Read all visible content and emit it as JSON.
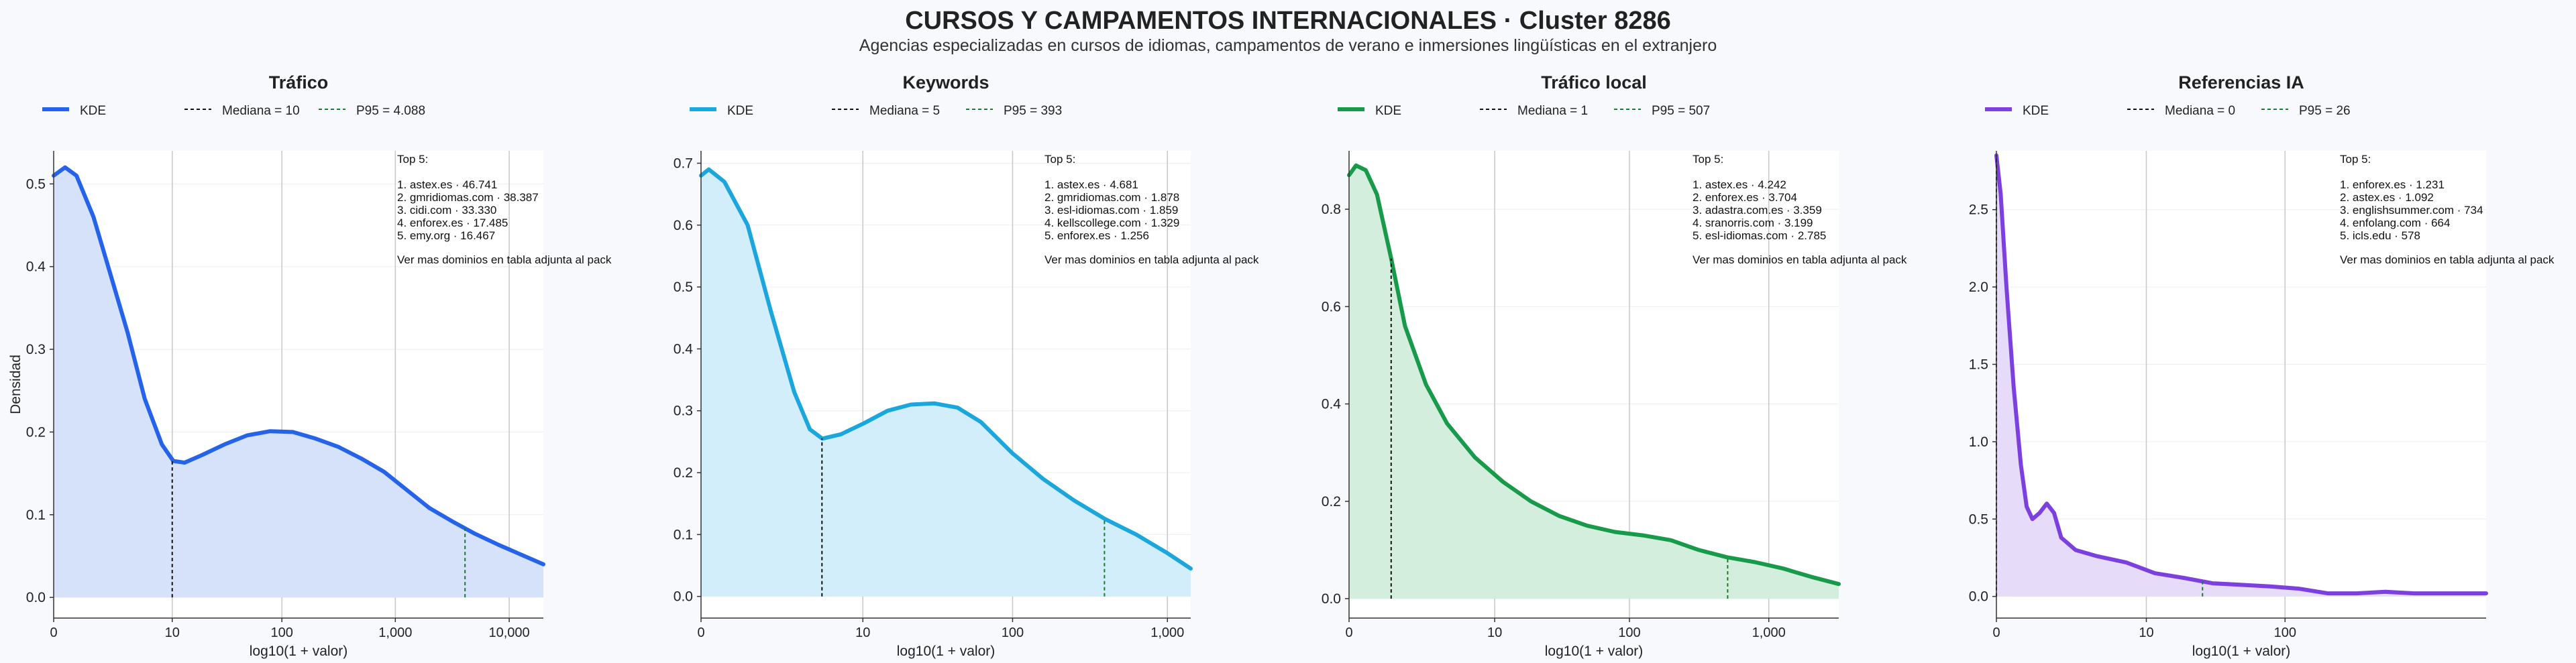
{
  "header": {
    "title": "CURSOS Y CAMPAMENTOS INTERNACIONALES · Cluster 8286",
    "subtitle": "Agencias especializadas en cursos de idiomas, campamentos de verano e inmersiones lingüísticas en el extranjero"
  },
  "shared": {
    "xlabel": "log10(1 + valor)",
    "ylabel": "Densidad",
    "legend_kde": "KDE",
    "top_heading": "Top 5:",
    "top_footer": "Ver mas dominios en tabla adjunta al pack"
  },
  "chart_data": [
    {
      "type": "area",
      "title": "Tráfico",
      "color": "#2563eb",
      "fill": "#d6e1fa",
      "xlim": [
        0,
        4.3
      ],
      "ylim": [
        -0.025,
        0.54
      ],
      "xticks": [
        {
          "v": 0,
          "label": "0"
        },
        {
          "v": 1.041,
          "label": "10"
        },
        {
          "v": 2.004,
          "label": "100"
        },
        {
          "v": 3.0,
          "label": "1,000"
        },
        {
          "v": 4.0,
          "label": "10,000"
        }
      ],
      "yticks": [
        0.0,
        0.1,
        0.2,
        0.3,
        0.4,
        0.5
      ],
      "ytick_decimals": 1,
      "curve": [
        [
          0,
          0.51
        ],
        [
          0.1,
          0.52
        ],
        [
          0.2,
          0.51
        ],
        [
          0.35,
          0.46
        ],
        [
          0.5,
          0.39
        ],
        [
          0.65,
          0.32
        ],
        [
          0.8,
          0.24
        ],
        [
          0.95,
          0.185
        ],
        [
          1.05,
          0.165
        ],
        [
          1.15,
          0.163
        ],
        [
          1.3,
          0.172
        ],
        [
          1.5,
          0.185
        ],
        [
          1.7,
          0.196
        ],
        [
          1.9,
          0.201
        ],
        [
          2.1,
          0.2
        ],
        [
          2.3,
          0.192
        ],
        [
          2.5,
          0.182
        ],
        [
          2.7,
          0.168
        ],
        [
          2.9,
          0.152
        ],
        [
          3.1,
          0.13
        ],
        [
          3.3,
          0.108
        ],
        [
          3.5,
          0.092
        ],
        [
          3.7,
          0.077
        ],
        [
          3.9,
          0.064
        ],
        [
          4.1,
          0.052
        ],
        [
          4.3,
          0.04
        ]
      ],
      "median": {
        "label": "Mediana = 10",
        "x": 1.041
      },
      "p95": {
        "label": "P95 = 4.088",
        "x": 3.612
      },
      "top5": [
        "1. astex.es · 46.741",
        "2. gmridiomas.com · 38.387",
        "3. cidi.com · 33.330",
        "4. enforex.es · 17.485",
        "5. emy.org · 16.467"
      ]
    },
    {
      "type": "area",
      "title": "Keywords",
      "color": "#1ba6dd",
      "fill": "#d2eefa",
      "xlim": [
        0,
        3.15
      ],
      "ylim": [
        -0.035,
        0.72
      ],
      "xticks": [
        {
          "v": 0,
          "label": "0"
        },
        {
          "v": 1.041,
          "label": "10"
        },
        {
          "v": 2.004,
          "label": "100"
        },
        {
          "v": 3.0,
          "label": "1,000"
        }
      ],
      "yticks": [
        0.0,
        0.1,
        0.2,
        0.3,
        0.4,
        0.5,
        0.6,
        0.7
      ],
      "ytick_decimals": 1,
      "curve": [
        [
          0,
          0.68
        ],
        [
          0.05,
          0.69
        ],
        [
          0.15,
          0.67
        ],
        [
          0.3,
          0.6
        ],
        [
          0.45,
          0.46
        ],
        [
          0.6,
          0.33
        ],
        [
          0.7,
          0.27
        ],
        [
          0.78,
          0.255
        ],
        [
          0.9,
          0.262
        ],
        [
          1.05,
          0.28
        ],
        [
          1.2,
          0.3
        ],
        [
          1.35,
          0.31
        ],
        [
          1.5,
          0.312
        ],
        [
          1.65,
          0.305
        ],
        [
          1.8,
          0.282
        ],
        [
          2.0,
          0.232
        ],
        [
          2.2,
          0.19
        ],
        [
          2.4,
          0.155
        ],
        [
          2.6,
          0.125
        ],
        [
          2.8,
          0.1
        ],
        [
          3.0,
          0.07
        ],
        [
          3.15,
          0.045
        ]
      ],
      "median": {
        "label": "Mediana = 5",
        "x": 0.778
      },
      "p95": {
        "label": "P95 = 393",
        "x": 2.595
      },
      "top5": [
        "1. astex.es · 4.681",
        "2. gmridiomas.com · 1.878",
        "3. esl-idiomas.com · 1.859",
        "4. kellscollege.com · 1.329",
        "5. enforex.es · 1.256"
      ]
    },
    {
      "type": "area",
      "title": "Tráfico local",
      "color": "#179a4a",
      "fill": "#d3eedc",
      "xlim": [
        0,
        3.5
      ],
      "ylim": [
        -0.04,
        0.92
      ],
      "xticks": [
        {
          "v": 0,
          "label": "0"
        },
        {
          "v": 1.041,
          "label": "10"
        },
        {
          "v": 2.004,
          "label": "100"
        },
        {
          "v": 3.0,
          "label": "1,000"
        }
      ],
      "yticks": [
        0.0,
        0.2,
        0.4,
        0.6,
        0.8
      ],
      "ytick_decimals": 1,
      "curve": [
        [
          0,
          0.87
        ],
        [
          0.05,
          0.89
        ],
        [
          0.12,
          0.88
        ],
        [
          0.2,
          0.83
        ],
        [
          0.3,
          0.7
        ],
        [
          0.4,
          0.56
        ],
        [
          0.55,
          0.44
        ],
        [
          0.7,
          0.36
        ],
        [
          0.9,
          0.29
        ],
        [
          1.1,
          0.24
        ],
        [
          1.3,
          0.2
        ],
        [
          1.5,
          0.17
        ],
        [
          1.7,
          0.15
        ],
        [
          1.9,
          0.137
        ],
        [
          2.1,
          0.13
        ],
        [
          2.3,
          0.12
        ],
        [
          2.5,
          0.1
        ],
        [
          2.7,
          0.085
        ],
        [
          2.9,
          0.075
        ],
        [
          3.1,
          0.062
        ],
        [
          3.3,
          0.045
        ],
        [
          3.5,
          0.03
        ]
      ],
      "median": {
        "label": "Mediana = 1",
        "x": 0.301
      },
      "p95": {
        "label": "P95 = 507",
        "x": 2.706
      },
      "top5": [
        "1. astex.es · 4.242",
        "2. enforex.es · 3.704",
        "3. adastra.com.es · 3.359",
        "4. sranorris.com · 3.199",
        "5. esl-idiomas.com · 2.785"
      ]
    },
    {
      "type": "area",
      "title": "Referencias IA",
      "color": "#7c3fe0",
      "fill": "#e6dbf9",
      "xlim": [
        0,
        3.4
      ],
      "ylim": [
        -0.14,
        2.88
      ],
      "xticks": [
        {
          "v": 0,
          "label": "0"
        },
        {
          "v": 1.041,
          "label": "10"
        },
        {
          "v": 2.004,
          "label": "100"
        }
      ],
      "yticks": [
        0.0,
        0.5,
        1.0,
        1.5,
        2.0,
        2.5
      ],
      "ytick_decimals": 1,
      "curve": [
        [
          0,
          2.85
        ],
        [
          0.03,
          2.6
        ],
        [
          0.07,
          2.0
        ],
        [
          0.12,
          1.35
        ],
        [
          0.17,
          0.85
        ],
        [
          0.21,
          0.58
        ],
        [
          0.25,
          0.5
        ],
        [
          0.3,
          0.54
        ],
        [
          0.35,
          0.6
        ],
        [
          0.4,
          0.54
        ],
        [
          0.45,
          0.38
        ],
        [
          0.55,
          0.3
        ],
        [
          0.7,
          0.26
        ],
        [
          0.9,
          0.22
        ],
        [
          1.1,
          0.15
        ],
        [
          1.3,
          0.12
        ],
        [
          1.5,
          0.085
        ],
        [
          1.7,
          0.075
        ],
        [
          1.9,
          0.065
        ],
        [
          2.1,
          0.05
        ],
        [
          2.3,
          0.02
        ],
        [
          2.5,
          0.02
        ],
        [
          2.7,
          0.03
        ],
        [
          2.9,
          0.02
        ],
        [
          3.1,
          0.02
        ],
        [
          3.4,
          0.02
        ]
      ],
      "median": {
        "label": "Mediana = 0",
        "x": 0.0
      },
      "p95": {
        "label": "P95 = 26",
        "x": 1.431
      },
      "top5": [
        "1. enforex.es · 1.231",
        "2. astex.es · 1.092",
        "3. englishsummer.com · 734",
        "4. enfolang.com · 664",
        "5. icls.edu · 578"
      ]
    }
  ]
}
